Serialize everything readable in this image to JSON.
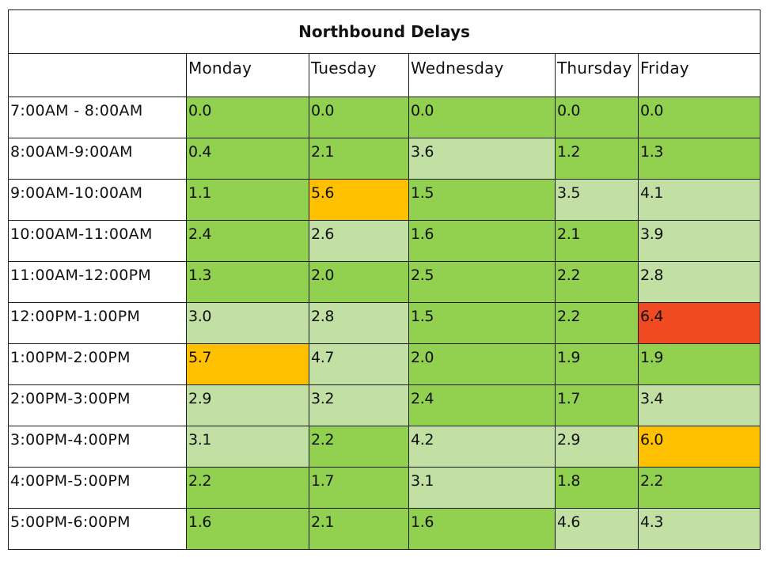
{
  "table": {
    "title": "Northbound Delays",
    "days": [
      "Monday",
      "Tuesday",
      "Wednesday",
      "Thursday",
      "Friday"
    ],
    "rows": [
      {
        "time": "7:00AM - 8:00AM",
        "values": [
          "0.0",
          "0.0",
          "0.0",
          "0.0",
          "0.0"
        ],
        "shades": [
          "dark",
          "dark",
          "dark",
          "dark",
          "dark"
        ]
      },
      {
        "time": "8:00AM-9:00AM",
        "values": [
          "0.4",
          "2.1",
          "3.6",
          "1.2",
          "1.3"
        ],
        "shades": [
          "dark",
          "dark",
          "light",
          "dark",
          "dark"
        ]
      },
      {
        "time": "9:00AM-10:00AM",
        "values": [
          "1.1",
          "5.6",
          "1.5",
          "3.5",
          "4.1"
        ],
        "shades": [
          "dark",
          "amber",
          "dark",
          "light",
          "light"
        ]
      },
      {
        "time": "10:00AM-11:00AM",
        "values": [
          "2.4",
          "2.6",
          "1.6",
          "2.1",
          "3.9"
        ],
        "shades": [
          "dark",
          "light",
          "dark",
          "dark",
          "light"
        ]
      },
      {
        "time": "11:00AM-12:00PM",
        "values": [
          "1.3",
          "2.0",
          "2.5",
          "2.2",
          "2.8"
        ],
        "shades": [
          "dark",
          "dark",
          "dark",
          "dark",
          "light"
        ]
      },
      {
        "time": "12:00PM-1:00PM",
        "values": [
          "3.0",
          "2.8",
          "1.5",
          "2.2",
          "6.4"
        ],
        "shades": [
          "light",
          "light",
          "dark",
          "dark",
          "red"
        ]
      },
      {
        "time": "1:00PM-2:00PM",
        "values": [
          "5.7",
          "4.7",
          "2.0",
          "1.9",
          "1.9"
        ],
        "shades": [
          "amber",
          "light",
          "dark",
          "dark",
          "dark"
        ]
      },
      {
        "time": "2:00PM-3:00PM",
        "values": [
          "2.9",
          "3.2",
          "2.4",
          "1.7",
          "3.4"
        ],
        "shades": [
          "light",
          "light",
          "dark",
          "dark",
          "light"
        ]
      },
      {
        "time": "3:00PM-4:00PM",
        "values": [
          "3.1",
          "2.2",
          "4.2",
          "2.9",
          "6.0"
        ],
        "shades": [
          "light",
          "dark",
          "light",
          "light",
          "amber"
        ]
      },
      {
        "time": "4:00PM-5:00PM",
        "values": [
          "2.2",
          "1.7",
          "3.1",
          "1.8",
          "2.2"
        ],
        "shades": [
          "dark",
          "dark",
          "light",
          "dark",
          "dark"
        ]
      },
      {
        "time": "5:00PM-6:00PM",
        "values": [
          "1.6",
          "2.1",
          "1.6",
          "4.6",
          "4.3"
        ],
        "shades": [
          "dark",
          "dark",
          "dark",
          "light",
          "light"
        ]
      }
    ],
    "colors": {
      "dark": "#92d050",
      "light": "#c3e0a4",
      "amber": "#ffc000",
      "red": "#f04a23"
    }
  }
}
